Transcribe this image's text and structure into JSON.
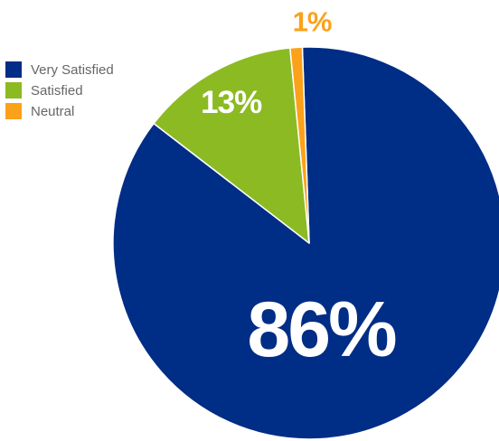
{
  "chart_data": {
    "type": "pie",
    "title": "",
    "categories": [
      "Very Satisfied",
      "Satisfied",
      "Neutral"
    ],
    "values": [
      86,
      13,
      1
    ],
    "value_labels": [
      "86%",
      "13%",
      "1%"
    ],
    "colors": [
      "#002d85",
      "#8cba23",
      "#fba11a"
    ],
    "label_colors": [
      "#ffffff",
      "#ffffff",
      "#fba11a"
    ],
    "legend": "top-left"
  }
}
